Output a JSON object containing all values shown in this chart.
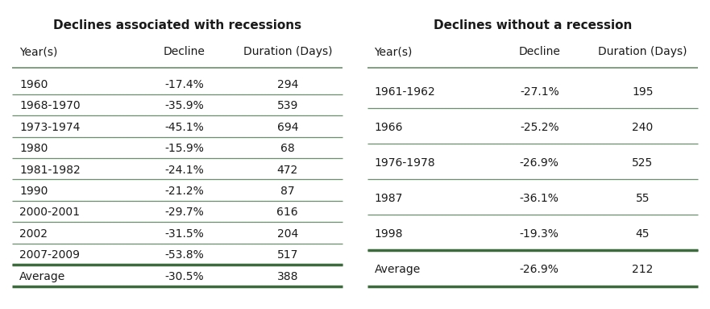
{
  "table1_title": "Declines associated with recessions",
  "table1_headers": [
    "Year(s)",
    "Decline",
    "Duration (Days)"
  ],
  "table1_rows": [
    [
      "1960",
      "-17.4%",
      "294"
    ],
    [
      "1968-1970",
      "-35.9%",
      "539"
    ],
    [
      "1973-1974",
      "-45.1%",
      "694"
    ],
    [
      "1980",
      "-15.9%",
      "68"
    ],
    [
      "1981-1982",
      "-24.1%",
      "472"
    ],
    [
      "1990",
      "-21.2%",
      "87"
    ],
    [
      "2000-2001",
      "-29.7%",
      "616"
    ],
    [
      "2002",
      "-31.5%",
      "204"
    ],
    [
      "2007-2009",
      "-53.8%",
      "517"
    ]
  ],
  "table1_avg": [
    "Average",
    "-30.5%",
    "388"
  ],
  "table2_title": "Declines without a recession",
  "table2_headers": [
    "Year(s)",
    "Decline",
    "Duration (Days)"
  ],
  "table2_rows": [
    [
      "1961-1962",
      "-27.1%",
      "195"
    ],
    [
      "1966",
      "-25.2%",
      "240"
    ],
    [
      "1976-1978",
      "-26.9%",
      "525"
    ],
    [
      "1987",
      "-36.1%",
      "55"
    ],
    [
      "1998",
      "-19.3%",
      "45"
    ]
  ],
  "table2_avg": [
    "Average",
    "-26.9%",
    "212"
  ],
  "line_color": "#6b8f6b",
  "thick_line_color": "#3d6b3d",
  "header_fontsize": 10,
  "title_fontsize": 11,
  "row_fontsize": 10,
  "bg_color": "#ffffff",
  "text_color": "#1a1a1a"
}
